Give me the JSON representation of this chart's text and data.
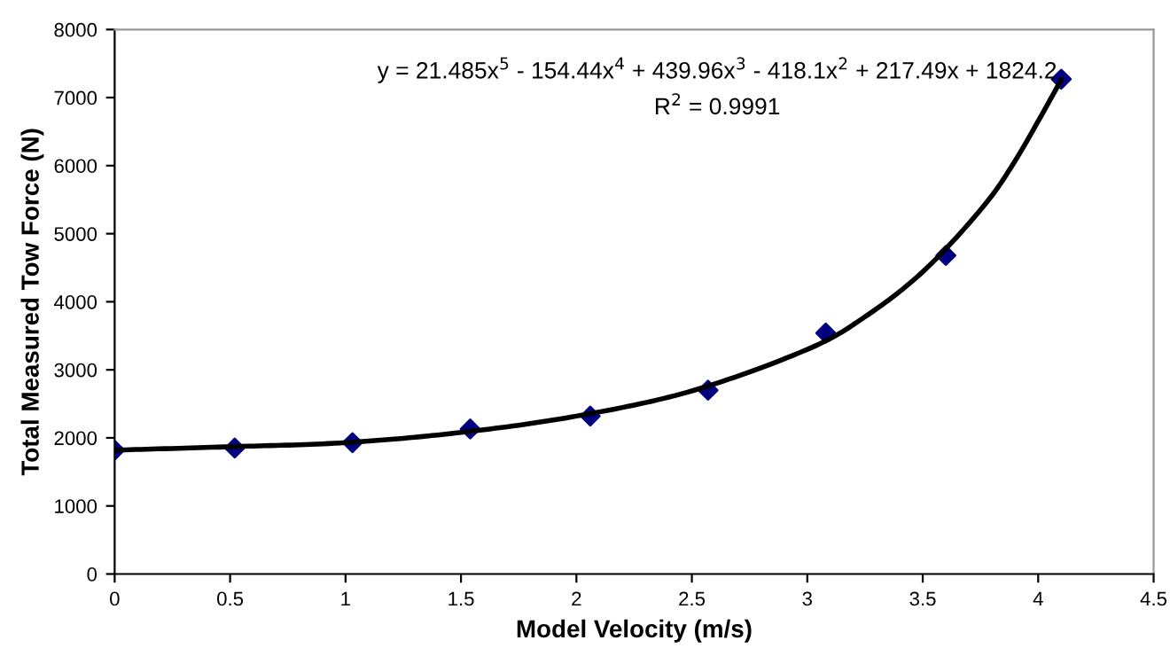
{
  "chart_data": {
    "type": "scatter",
    "xlabel": "Model Velocity (m/s)",
    "ylabel": "Total Measured Tow Force (N)",
    "annotations": [
      "y = 21.485x$^{5}$ - 154.44x$^{4}$ + 439.96x$^{3}$ - 418.1x$^{2}$ + 217.49x + 1824.2",
      "R$^{2}$ = 0.9991"
    ],
    "series": [
      {
        "color": "#000080",
        "marker": "diamond",
        "x": [
          0,
          0.52,
          1.03,
          1.54,
          2.06,
          2.57,
          3.08,
          3.6,
          4.1
        ],
        "values": [
          1820,
          1850,
          1930,
          2130,
          2320,
          2700,
          3540,
          4680,
          7270
        ]
      },
      {
        "type": "line",
        "color": "#000000",
        "marker": "none",
        "x": [
          0,
          0.5,
          1,
          1.5,
          2,
          2.5,
          3,
          3.25,
          3.5,
          3.75,
          3.9,
          4.1
        ],
        "values": [
          1820,
          1870,
          1930,
          2080,
          2320,
          2690,
          3300,
          3780,
          4440,
          5350,
          6070,
          7260
        ]
      }
    ],
    "xlim": [
      0,
      4.5
    ],
    "xticks": [
      0,
      0.5,
      1,
      1.5,
      2,
      2.5,
      3,
      3.5,
      4,
      4.5
    ],
    "ylim": [
      0,
      8000
    ],
    "yticks": [
      0,
      1000,
      2000,
      3000,
      4000,
      5000,
      6000,
      7000,
      8000
    ],
    "grid": false,
    "legend": false
  }
}
